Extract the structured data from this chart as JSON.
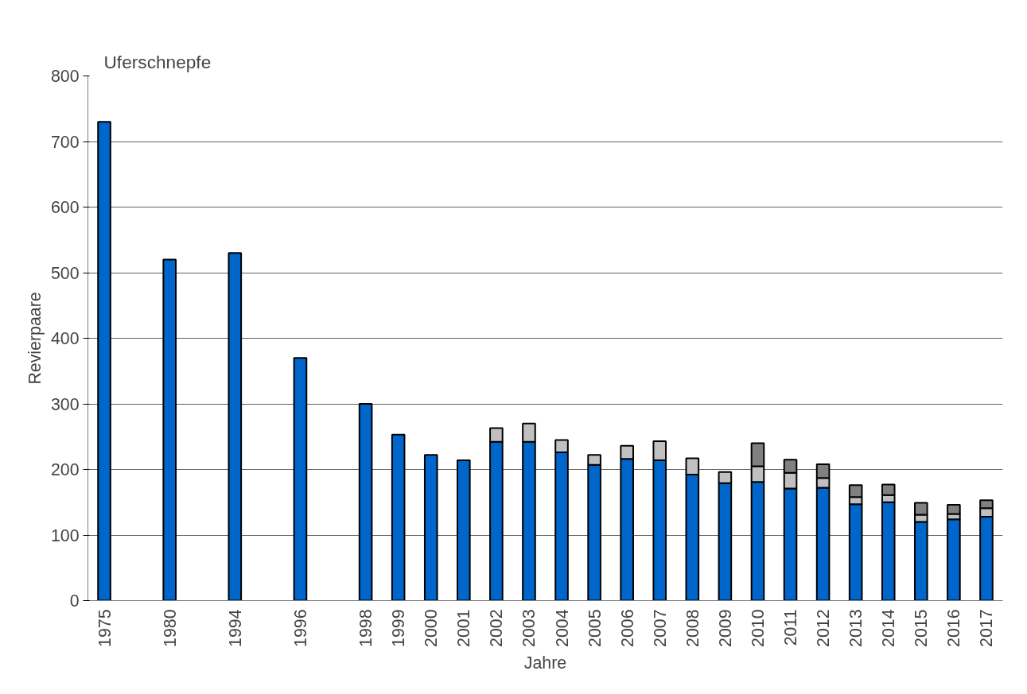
{
  "chart_data": {
    "type": "bar",
    "title": "Uferschnepfe",
    "xlabel": "Jahre",
    "ylabel": "Revierpaare",
    "stacked": true,
    "categories": [
      "1975",
      null,
      "1980",
      null,
      "1994",
      null,
      "1996",
      null,
      "1998",
      "1999",
      "2000",
      "2001",
      "2002",
      "2003",
      "2004",
      "2005",
      "2006",
      "2007",
      "2008",
      "2009",
      "2010",
      "2011",
      "2012",
      "2013",
      "2014",
      "2015",
      "2016",
      "2017"
    ],
    "series": [
      {
        "color": "#0066cc",
        "values": [
          730,
          null,
          520,
          null,
          530,
          null,
          370,
          null,
          300,
          253,
          222,
          214,
          242,
          242,
          226,
          207,
          216,
          214,
          192,
          179,
          181,
          171,
          172,
          147,
          150,
          120,
          124,
          128
        ]
      },
      {
        "color": "#c0c0c0",
        "values": [
          null,
          null,
          null,
          null,
          null,
          null,
          null,
          null,
          null,
          null,
          null,
          null,
          21,
          28,
          19,
          15,
          20,
          29,
          25,
          17,
          24,
          24,
          15,
          11,
          11,
          11,
          8,
          13
        ]
      },
      {
        "color": "#808080",
        "values": [
          null,
          null,
          null,
          null,
          null,
          null,
          null,
          null,
          null,
          null,
          null,
          null,
          null,
          null,
          null,
          null,
          null,
          null,
          null,
          null,
          35,
          20,
          21,
          18,
          16,
          18,
          14,
          12
        ]
      }
    ],
    "ylim": [
      0,
      800
    ],
    "yticks": [
      0,
      100,
      200,
      300,
      400,
      500,
      600,
      700,
      800
    ],
    "grid": "y"
  }
}
